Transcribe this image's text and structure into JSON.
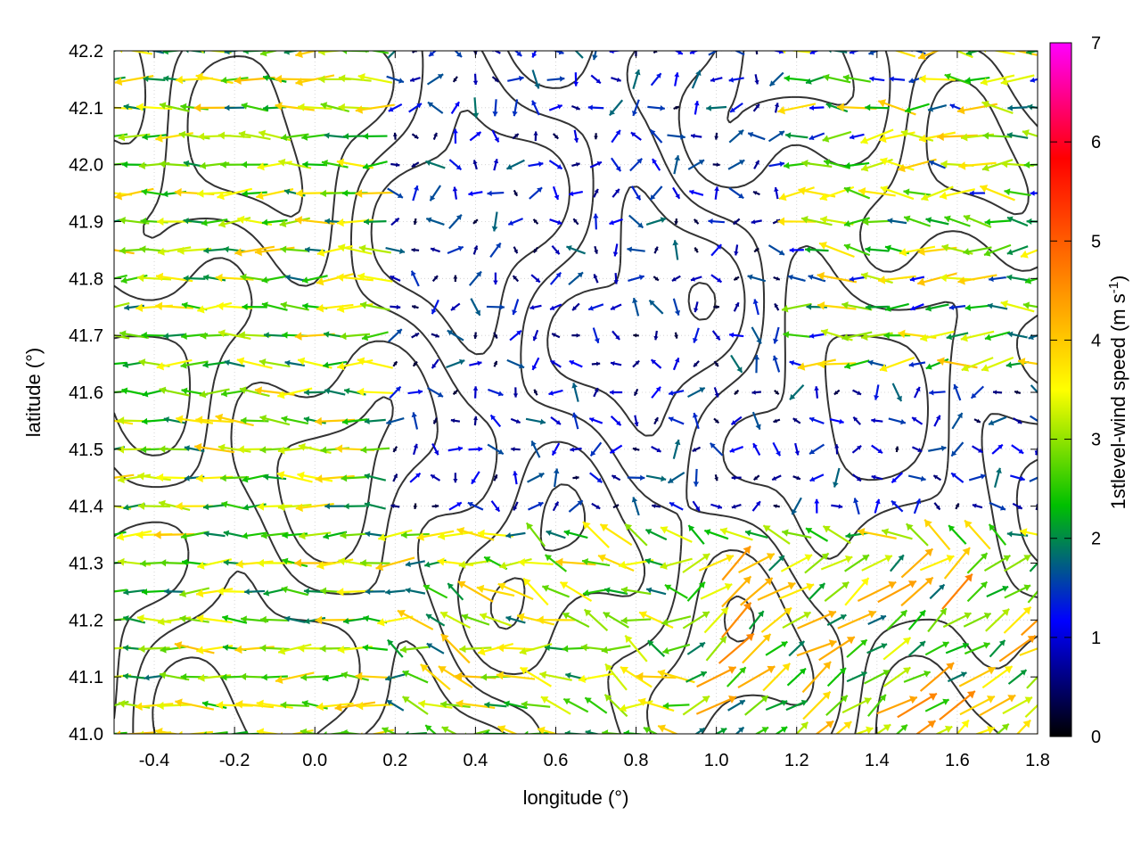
{
  "chart_data": {
    "type": "vector-field",
    "xlabel": "longitude (°)",
    "ylabel": "latitude (°)",
    "colorbar_label": "1stlevel-wind speed (m s",
    "colorbar_label_sup": "-1",
    "colorbar_label_end": ")",
    "xlim": [
      -0.5,
      1.8
    ],
    "ylim": [
      41.0,
      42.2
    ],
    "xticks": [
      "-0.4",
      "-0.2",
      "0.0",
      "0.2",
      "0.4",
      "0.6",
      "0.8",
      "1.0",
      "1.2",
      "1.4",
      "1.6",
      "1.8"
    ],
    "xtick_values": [
      -0.4,
      -0.2,
      0.0,
      0.2,
      0.4,
      0.6,
      0.8,
      1.0,
      1.2,
      1.4,
      1.6,
      1.8
    ],
    "yticks": [
      "41.0",
      "41.1",
      "41.2",
      "41.3",
      "41.4",
      "41.5",
      "41.6",
      "41.7",
      "41.8",
      "41.9",
      "42.0",
      "42.1",
      "42.2"
    ],
    "ytick_values": [
      41.0,
      41.1,
      41.2,
      41.3,
      41.4,
      41.5,
      41.6,
      41.7,
      41.8,
      41.9,
      42.0,
      42.1,
      42.2
    ],
    "colorbar_ticks": [
      "0",
      "1",
      "2",
      "3",
      "4",
      "5",
      "6",
      "7"
    ],
    "colorbar_range": [
      0,
      7
    ],
    "colorbar_palette": [
      "#000000",
      "#0000ff",
      "#00c000",
      "#ffff00",
      "#ff8000",
      "#ff0000",
      "#ff00ff"
    ],
    "grid": true,
    "contour_color": "#333333",
    "vector_grid_spacing": [
      0.05,
      0.05
    ],
    "wind_regions": [
      {
        "region": "west (-0.5 to 0.1)",
        "direction": "westward",
        "speed_range": [
          1.5,
          3.5
        ]
      },
      {
        "region": "central basin (0.3 to 1.1, 41.4 to 41.9)",
        "direction": "variable",
        "speed_range": [
          0.2,
          1.5
        ]
      },
      {
        "region": "southeast (1.0 to 1.8, 41.0 to 41.3)",
        "direction": "northeast",
        "speed_range": [
          1.5,
          4.0
        ]
      },
      {
        "region": "northeast (1.2 to 1.8, 41.6 to 42.2)",
        "direction": "west/northwest",
        "speed_range": [
          1.0,
          3.5
        ]
      }
    ]
  }
}
